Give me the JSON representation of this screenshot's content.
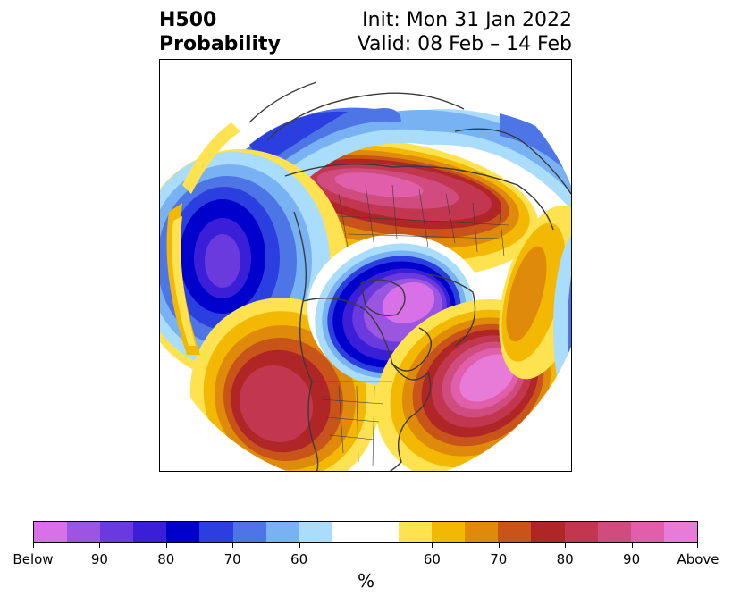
{
  "title": {
    "left_line1": "H500",
    "left_line2": "Probability",
    "right_line1": "Init: Mon 31 Jan 2022",
    "right_line2": "Valid: 08 Feb – 14 Feb"
  },
  "colorbar": {
    "colors": [
      "#d870e8",
      "#9a56e0",
      "#6a3ade",
      "#3b1fd8",
      "#0000cc",
      "#2b3fe0",
      "#4e75e6",
      "#78b2f2",
      "#aadcfc",
      "#ffffff",
      "#ffffff",
      "#ffe24f",
      "#f3b803",
      "#e08a0b",
      "#c8541a",
      "#b02626",
      "#c33650",
      "#d04c7e",
      "#e05eaa",
      "#e87ad8"
    ],
    "tick_labels": [
      "Below",
      "90",
      "80",
      "70",
      "60",
      "",
      "60",
      "70",
      "80",
      "90",
      "Above"
    ],
    "unit_label": "%"
  },
  "map": {
    "projection": "north-polar stereographic",
    "below_color": "#6a3ade",
    "above_color": "#e05eaa"
  }
}
